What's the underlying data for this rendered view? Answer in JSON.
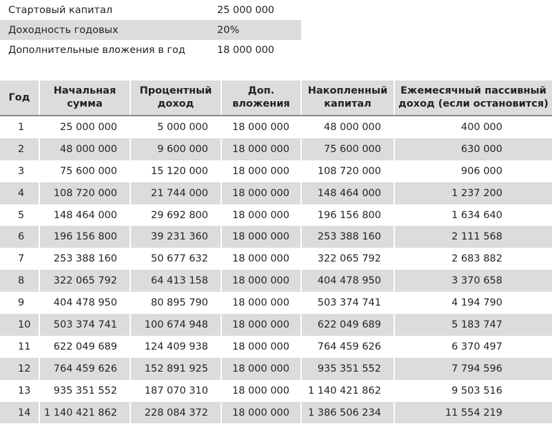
{
  "params": {
    "rows": [
      [
        "Стартовый капитал",
        "25 000 000"
      ],
      [
        "Доходность годовых",
        "20%"
      ],
      [
        "Дополнительные вложения в год",
        "18 000 000"
      ]
    ]
  },
  "table": {
    "header": [
      "Год",
      "Начальная сумма",
      "Процентный доход",
      "Доп. вложения",
      "Накопленный капитал",
      "Ежемесячный пассивный доход (если остановится)"
    ],
    "rows": [
      [
        "1",
        "25 000 000",
        "5 000 000",
        "18 000 000",
        "48 000 000",
        "400 000"
      ],
      [
        "2",
        "48 000 000",
        "9 600 000",
        "18 000 000",
        "75 600 000",
        "630 000"
      ],
      [
        "3",
        "75 600 000",
        "15 120 000",
        "18 000 000",
        "108 720 000",
        "906 000"
      ],
      [
        "4",
        "108 720 000",
        "21 744 000",
        "18 000 000",
        "148 464 000",
        "1 237 200"
      ],
      [
        "5",
        "148 464 000",
        "29 692 800",
        "18 000 000",
        "196 156 800",
        "1 634 640"
      ],
      [
        "6",
        "196 156 800",
        "39 231 360",
        "18 000 000",
        "253 388 160",
        "2 111 568"
      ],
      [
        "7",
        "253 388 160",
        "50 677 632",
        "18 000 000",
        "322 065 792",
        "2 683 882"
      ],
      [
        "8",
        "322 065 792",
        "64 413 158",
        "18 000 000",
        "404 478 950",
        "3 370 658"
      ],
      [
        "9",
        "404 478 950",
        "80 895 790",
        "18 000 000",
        "503 374 741",
        "4 194 790"
      ],
      [
        "10",
        "503 374 741",
        "100 674 948",
        "18 000 000",
        "622 049 689",
        "5 183 747"
      ],
      [
        "11",
        "622 049 689",
        "124 409 938",
        "18 000 000",
        "764 459 626",
        "6 370 497"
      ],
      [
        "12",
        "764 459 626",
        "152 891 925",
        "18 000 000",
        "935 351 552",
        "7 794 596"
      ],
      [
        "13",
        "935 351 552",
        "187 070 310",
        "18 000 000",
        "1 140 421 862",
        "9 503 516"
      ],
      [
        "14",
        "1 140 421 862",
        "228 084 372",
        "18 000 000",
        "1 386 506 234",
        "11 554 219"
      ]
    ]
  }
}
